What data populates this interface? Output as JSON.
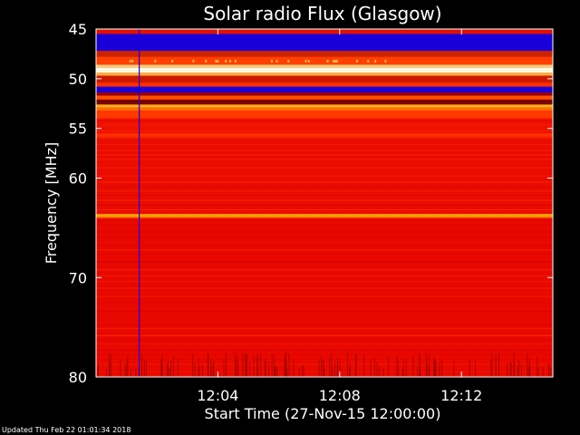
{
  "chart_data": {
    "type": "heatmap",
    "title": "Solar radio Flux (Glasgow)",
    "xlabel": "Start Time (27-Nov-15 12:00:00)",
    "ylabel": "Frequency [MHz]",
    "x_unit": "minutes after 12:00:00",
    "xlim": [
      0,
      15
    ],
    "ylim": [
      45,
      80
    ],
    "x_ticks": [
      {
        "value": 4,
        "label": "12:04"
      },
      {
        "value": 8,
        "label": "12:08"
      },
      {
        "value": 12,
        "label": "12:12"
      }
    ],
    "y_ticks": [
      {
        "value": 45,
        "label": "45"
      },
      {
        "value": 50,
        "label": "50"
      },
      {
        "value": 55,
        "label": "55"
      },
      {
        "value": 60,
        "label": "60"
      },
      {
        "value": 70,
        "label": "70"
      },
      {
        "value": 80,
        "label": "80"
      }
    ],
    "colormap": [
      "#1a00d8",
      "#7a0000",
      "#e80000",
      "#ff2a00",
      "#ff7a00",
      "#ffd080",
      "#fffbe0"
    ],
    "bands": [
      {
        "from": 45.0,
        "to": 45.5,
        "color": "#e01000"
      },
      {
        "from": 45.5,
        "to": 47.2,
        "color": "#1a00d8"
      },
      {
        "from": 47.2,
        "to": 47.8,
        "color": "#cc2200"
      },
      {
        "from": 47.8,
        "to": 48.6,
        "color": "#ff4000"
      },
      {
        "from": 48.6,
        "to": 48.9,
        "color": "#ffd080"
      },
      {
        "from": 48.9,
        "to": 49.4,
        "color": "#fffbe0"
      },
      {
        "from": 49.4,
        "to": 49.7,
        "color": "#ffb040"
      },
      {
        "from": 49.7,
        "to": 50.4,
        "color": "#cc1a00"
      },
      {
        "from": 50.4,
        "to": 50.8,
        "color": "#ff3000"
      },
      {
        "from": 50.8,
        "to": 51.4,
        "color": "#1a00d8"
      },
      {
        "from": 51.4,
        "to": 51.7,
        "color": "#9a0000"
      },
      {
        "from": 51.7,
        "to": 52.1,
        "color": "#ff5000"
      },
      {
        "from": 52.1,
        "to": 52.6,
        "color": "#7a0000"
      },
      {
        "from": 52.6,
        "to": 52.9,
        "color": "#ffb020"
      },
      {
        "from": 52.9,
        "to": 53.2,
        "color": "#ff7000"
      },
      {
        "from": 53.2,
        "to": 54.0,
        "color": "#ff3800"
      },
      {
        "from": 54.0,
        "to": 55.5,
        "color": "#ee1000"
      },
      {
        "from": 55.5,
        "to": 56.0,
        "color": "#ff3000"
      },
      {
        "from": 56.0,
        "to": 63.6,
        "color": "#ea0c00"
      },
      {
        "from": 63.6,
        "to": 64.0,
        "color": "#ffa000"
      },
      {
        "from": 64.0,
        "to": 80.0,
        "color": "#e80800"
      }
    ],
    "vertical_line": {
      "x": 1.4,
      "color": "#1a00d8"
    },
    "annotation_footer": "Updated Thu Feb 22 01:01:34 2018"
  },
  "footer": "Updated Thu Feb 22 01:01:34 2018"
}
